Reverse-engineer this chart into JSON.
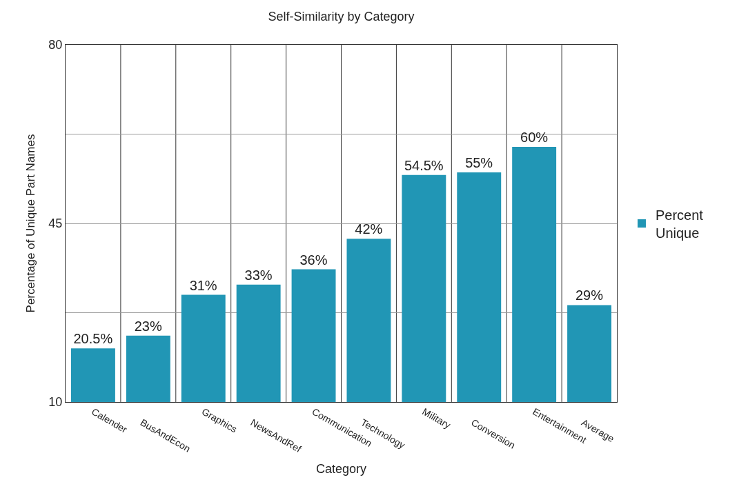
{
  "chart_data": {
    "type": "bar",
    "title": "Self-Similarity by Category",
    "xlabel": "Category",
    "ylabel": "Percentage of Unique Part Names",
    "categories": [
      "Calender",
      "BusAndEcon",
      "Graphics",
      "NewsAndRef",
      "Communication",
      "Technology",
      "Military",
      "Conversion",
      "Entertainment",
      "Average"
    ],
    "series": [
      {
        "name": "Percent Unique",
        "color": "#2196b5",
        "values": [
          20.5,
          23,
          31,
          33,
          36,
          42,
          54.5,
          55,
          60,
          29
        ],
        "value_labels": [
          "20.5%",
          "23%",
          "31%",
          "33%",
          "36%",
          "42%",
          "54.5%",
          "55%",
          "60%",
          "29%"
        ]
      }
    ],
    "ylim": [
      10,
      80
    ],
    "yticks": [
      10,
      {
        "value": 27.5,
        "label": null
      },
      45,
      {
        "value": 62.5,
        "label": null
      },
      80
    ],
    "grid": true,
    "legend": "right"
  }
}
